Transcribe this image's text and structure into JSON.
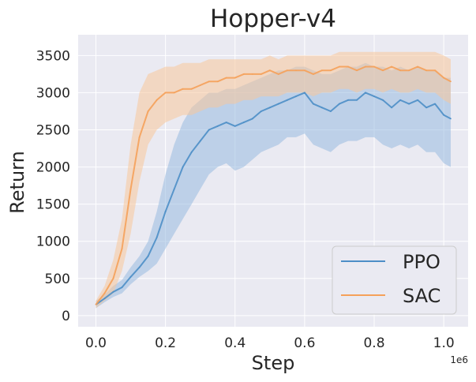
{
  "chart_data": {
    "type": "line",
    "title": "Hopper-v4",
    "xlabel": "Step",
    "ylabel": "Return",
    "x_offset_label": "1e6",
    "xlim": [
      -0.051,
      1.07
    ],
    "ylim": [
      -150,
      3780
    ],
    "xticks": [
      0.0,
      0.2,
      0.4,
      0.6,
      0.8,
      1.0
    ],
    "xtick_labels": [
      "0.0",
      "0.2",
      "0.4",
      "0.6",
      "0.8",
      "1.0"
    ],
    "yticks": [
      0,
      500,
      1000,
      1500,
      2000,
      2500,
      3000,
      3500
    ],
    "ytick_labels": [
      "0",
      "500",
      "1000",
      "1500",
      "2000",
      "2500",
      "3000",
      "3500"
    ],
    "grid": true,
    "legend_position": "bottom-right",
    "colors": {
      "background": "#eaeaf2",
      "grid": "#ffffff",
      "PPO": "#4c8ec7",
      "PPO_band": "#8fb5dd",
      "SAC": "#f5a15a",
      "SAC_band": "#f7c69b"
    },
    "x": [
      0.0,
      0.025,
      0.05,
      0.075,
      0.1,
      0.125,
      0.15,
      0.175,
      0.2,
      0.225,
      0.25,
      0.275,
      0.3,
      0.325,
      0.35,
      0.375,
      0.4,
      0.425,
      0.45,
      0.475,
      0.5,
      0.525,
      0.55,
      0.575,
      0.6,
      0.625,
      0.65,
      0.675,
      0.7,
      0.725,
      0.75,
      0.775,
      0.8,
      0.825,
      0.85,
      0.875,
      0.9,
      0.925,
      0.95,
      0.975,
      1.0,
      1.02
    ],
    "series": [
      {
        "name": "PPO",
        "values": [
          150,
          230,
          320,
          380,
          520,
          650,
          800,
          1050,
          1400,
          1700,
          2000,
          2200,
          2350,
          2500,
          2550,
          2600,
          2550,
          2600,
          2650,
          2750,
          2800,
          2850,
          2900,
          2950,
          3000,
          2850,
          2800,
          2750,
          2850,
          2900,
          2900,
          3000,
          2950,
          2900,
          2800,
          2900,
          2850,
          2900,
          2800,
          2850,
          2700,
          2650
        ],
        "lower": [
          100,
          180,
          250,
          300,
          420,
          520,
          600,
          700,
          900,
          1100,
          1300,
          1500,
          1700,
          1900,
          2000,
          2050,
          1950,
          2000,
          2100,
          2200,
          2250,
          2300,
          2400,
          2400,
          2450,
          2300,
          2250,
          2200,
          2300,
          2350,
          2350,
          2400,
          2400,
          2300,
          2250,
          2300,
          2250,
          2300,
          2200,
          2200,
          2050,
          2000
        ],
        "upper": [
          200,
          280,
          400,
          480,
          650,
          800,
          1000,
          1400,
          1900,
          2300,
          2600,
          2800,
          2900,
          3000,
          3000,
          3050,
          3050,
          3100,
          3150,
          3200,
          3250,
          3300,
          3300,
          3350,
          3350,
          3300,
          3250,
          3250,
          3300,
          3350,
          3350,
          3400,
          3350,
          3350,
          3300,
          3350,
          3300,
          3350,
          3300,
          3300,
          3200,
          3200
        ]
      },
      {
        "name": "SAC",
        "values": [
          150,
          300,
          500,
          900,
          1700,
          2400,
          2750,
          2900,
          3000,
          3000,
          3050,
          3050,
          3100,
          3150,
          3150,
          3200,
          3200,
          3250,
          3250,
          3250,
          3300,
          3250,
          3300,
          3300,
          3300,
          3250,
          3300,
          3300,
          3350,
          3350,
          3300,
          3350,
          3350,
          3300,
          3350,
          3300,
          3300,
          3350,
          3300,
          3300,
          3200,
          3150
        ],
        "lower": [
          100,
          200,
          300,
          600,
          1100,
          1800,
          2300,
          2500,
          2600,
          2650,
          2700,
          2700,
          2750,
          2800,
          2800,
          2850,
          2850,
          2900,
          2900,
          2950,
          2950,
          2950,
          3000,
          3000,
          3000,
          2950,
          3000,
          3000,
          3050,
          3050,
          3000,
          3050,
          3050,
          3000,
          3050,
          3000,
          3000,
          3050,
          3000,
          3000,
          2900,
          2850
        ],
        "upper": [
          200,
          400,
          750,
          1300,
          2300,
          3000,
          3250,
          3300,
          3350,
          3350,
          3400,
          3400,
          3400,
          3450,
          3450,
          3450,
          3450,
          3450,
          3450,
          3450,
          3500,
          3450,
          3500,
          3500,
          3500,
          3500,
          3500,
          3500,
          3550,
          3550,
          3550,
          3550,
          3550,
          3550,
          3550,
          3550,
          3550,
          3550,
          3550,
          3550,
          3500,
          3450
        ]
      }
    ]
  }
}
